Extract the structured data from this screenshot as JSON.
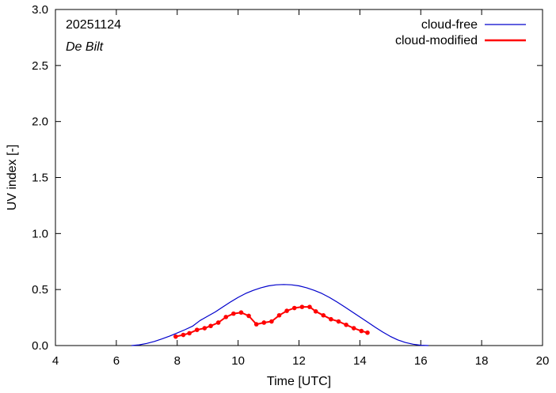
{
  "chart_data": {
    "type": "line",
    "annotation": {
      "date": "20251124",
      "location": "De Bilt"
    },
    "xlabel": "Time  [UTC]",
    "ylabel": "UV index  [-]",
    "xlim": [
      4,
      20
    ],
    "ylim": [
      0,
      3
    ],
    "xticks": [
      4,
      6,
      8,
      10,
      12,
      14,
      16,
      18,
      20
    ],
    "xtick_labels": [
      "4",
      "6",
      "8",
      "10",
      "12",
      "14",
      "16",
      "18",
      "20"
    ],
    "yticks": [
      0,
      0.5,
      1,
      1.5,
      2,
      2.5,
      3
    ],
    "ytick_labels": [
      "0.0",
      "0.5",
      "1.0",
      "1.5",
      "2.0",
      "2.5",
      "3.0"
    ],
    "legend_position": "top-right",
    "series": [
      {
        "name": "cloud-free",
        "color": "#0000cc",
        "style": "line",
        "x": [
          6.5,
          6.75,
          7.0,
          7.25,
          7.5,
          7.75,
          8.0,
          8.25,
          8.5,
          8.75,
          9.0,
          9.25,
          9.5,
          9.75,
          10.0,
          10.25,
          10.5,
          10.75,
          11.0,
          11.25,
          11.5,
          11.75,
          12.0,
          12.25,
          12.5,
          12.75,
          13.0,
          13.25,
          13.5,
          13.75,
          14.0,
          14.25,
          14.5,
          14.75,
          15.0,
          15.25,
          15.5,
          15.75,
          16.0,
          16.25
        ],
        "values": [
          0.0,
          0.006,
          0.019,
          0.037,
          0.059,
          0.084,
          0.112,
          0.141,
          0.172,
          0.224,
          0.262,
          0.3,
          0.345,
          0.389,
          0.43,
          0.465,
          0.493,
          0.516,
          0.533,
          0.542,
          0.545,
          0.542,
          0.533,
          0.516,
          0.493,
          0.465,
          0.43,
          0.389,
          0.345,
          0.3,
          0.255,
          0.21,
          0.164,
          0.121,
          0.082,
          0.05,
          0.027,
          0.012,
          0.003,
          0.0
        ]
      },
      {
        "name": "cloud-modified",
        "color": "#ff0000",
        "style": "line-markers",
        "x": [
          7.95,
          8.2,
          8.4,
          8.65,
          8.9,
          9.1,
          9.35,
          9.6,
          9.85,
          10.1,
          10.35,
          10.6,
          10.85,
          11.1,
          11.35,
          11.6,
          11.85,
          12.1,
          12.35,
          12.55,
          12.8,
          13.05,
          13.3,
          13.55,
          13.8,
          14.05,
          14.25
        ],
        "values": [
          0.08,
          0.095,
          0.11,
          0.14,
          0.155,
          0.175,
          0.205,
          0.255,
          0.285,
          0.295,
          0.265,
          0.19,
          0.205,
          0.215,
          0.27,
          0.31,
          0.335,
          0.345,
          0.345,
          0.305,
          0.27,
          0.235,
          0.215,
          0.185,
          0.155,
          0.13,
          0.115
        ]
      }
    ]
  }
}
